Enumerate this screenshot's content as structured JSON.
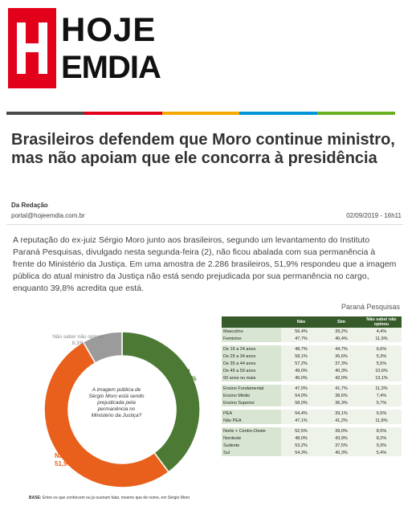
{
  "logo": {
    "letter": "H",
    "word_top": "HOJE",
    "word_bottom": "EMDIA"
  },
  "colors": {
    "brand_red": "#e2001a",
    "stripe": [
      "#4a4a4a",
      "#e2001a",
      "#f7a800",
      "#0095d9",
      "#6ab023"
    ],
    "sim": "#4c7a34",
    "nao": "#e8601b",
    "nao_sabe": "#9b9b9b",
    "table_header": "#365a2a"
  },
  "article": {
    "headline": "Brasileiros defendem que Moro continue ministro, mas não apoiam que ele concorra à presidência",
    "author": "Da Redação",
    "email": "portal@hojeemdia.com.br",
    "datetime": "02/09/2019 - 16h11",
    "lead": "A reputação do ex-juiz Sérgio Moro junto aos brasileiros, segundo um levantamento do Instituto Paraná Pesquisas, divulgado nesta segunda-feira (2), não ficou abalada com sua permanência à frente do Ministério da Justiça. Em uma amostra de 2.286 brasileiros, 51,9% respondeu que a imagem pública do atual ministro da Justiça não está sendo prejudicada por sua permanência no cargo, enquanto 39,8% acredita que está."
  },
  "figure": {
    "source": "Paraná Pesquisas",
    "center_question": "A imagem pública de Sérgio Moro está sendo prejudicada pela permanência no Ministério da Justiça?",
    "base_note_label": "BASE:",
    "base_note_text": " Entre os que conhecem ou já ouviram  falar, mesmo que de nome, em Sérgio Moro"
  },
  "chart_data": [
    {
      "type": "pie",
      "slices": [
        {
          "label": "Sim",
          "value": 39.8,
          "display": "39,8%"
        },
        {
          "label": "Não",
          "value": 51.9,
          "display": "51,9%"
        },
        {
          "label": "Não sabe/ não opinou",
          "value": 8.3,
          "display": "8,3%"
        }
      ]
    },
    {
      "type": "table",
      "columns": [
        "",
        "Não",
        "Sim",
        "Não sabe/ não opinou"
      ],
      "groups": [
        {
          "rows": [
            {
              "label": "Masculino",
              "values": [
                "56,4%",
                "39,2%",
                "4,4%"
              ]
            },
            {
              "label": "Feminino",
              "values": [
                "47,7%",
                "40,4%",
                "11,9%"
              ]
            }
          ]
        },
        {
          "rows": [
            {
              "label": "De 16 a 24 anos",
              "values": [
                "48,7%",
                "44,7%",
                "6,6%"
              ]
            },
            {
              "label": "De 25 a 34 anos",
              "values": [
                "58,1%",
                "36,6%",
                "5,3%"
              ]
            },
            {
              "label": "De 35 a 44 anos",
              "values": [
                "57,2%",
                "37,3%",
                "5,5%"
              ]
            },
            {
              "label": "De 45 a 59 anos",
              "values": [
                "49,0%",
                "40,3%",
                "10,6%"
              ]
            },
            {
              "label": "60 anos ou mais",
              "values": [
                "45,0%",
                "42,0%",
                "13,1%"
              ]
            }
          ]
        },
        {
          "rows": [
            {
              "label": "Ensino Fundamental",
              "values": [
                "47,0%",
                "41,7%",
                "11,3%"
              ]
            },
            {
              "label": "Ensino Médio",
              "values": [
                "54,0%",
                "38,6%",
                "7,4%"
              ]
            },
            {
              "label": "Ensino Superior",
              "values": [
                "58,0%",
                "36,3%",
                "5,7%"
              ]
            }
          ]
        },
        {
          "rows": [
            {
              "label": "PEA",
              "values": [
                "54,4%",
                "39,1%",
                "6,5%"
              ]
            },
            {
              "label": "Não PEA",
              "values": [
                "47,1%",
                "41,2%",
                "11,8%"
              ]
            }
          ]
        },
        {
          "rows": [
            {
              "label": "Norte + Centro-Oeste",
              "values": [
                "52,5%",
                "39,0%",
                "8,5%"
              ]
            },
            {
              "label": "Nordeste",
              "values": [
                "48,0%",
                "43,9%",
                "8,2%"
              ]
            },
            {
              "label": "Sudeste",
              "values": [
                "53,2%",
                "37,5%",
                "9,3%"
              ]
            },
            {
              "label": "Sul",
              "values": [
                "54,3%",
                "40,3%",
                "5,4%"
              ]
            }
          ]
        }
      ]
    }
  ]
}
